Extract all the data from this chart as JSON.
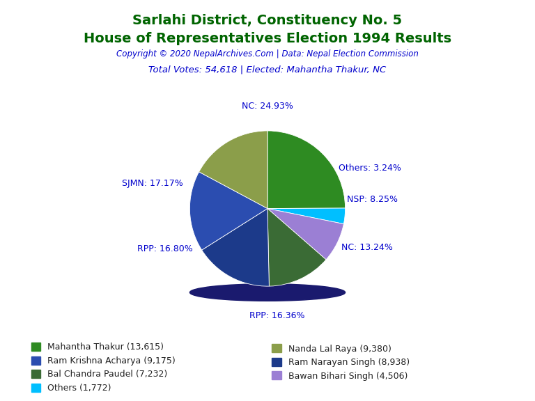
{
  "title_line1": "Sarlahi District, Constituency No. 5",
  "title_line2": "House of Representatives Election 1994 Results",
  "title_color": "#006400",
  "copyright_text": "Copyright © 2020 NepalArchives.Com | Data: Nepal Election Commission",
  "copyright_color": "#0000CC",
  "total_votes_text": "Total Votes: 54,618 | Elected: Mahantha Thakur, NC",
  "total_votes_color": "#0000CC",
  "slices": [
    {
      "label": "NC: 24.93%",
      "value": 13615,
      "color": "#2E8B22",
      "legend": "Mahantha Thakur (13,615)"
    },
    {
      "label": "Others: 3.24%",
      "value": 1772,
      "color": "#00BFFF",
      "legend": "Others (1,772)"
    },
    {
      "label": "NSP: 8.25%",
      "value": 4506,
      "color": "#9B7FD4",
      "legend": "Bawan Bihari Singh (4,506)"
    },
    {
      "label": "NC: 13.24%",
      "value": 7232,
      "color": "#3A6B35",
      "legend": "Bal Chandra Paudel (7,232)"
    },
    {
      "label": "RPP: 16.36%",
      "value": 8938,
      "color": "#1C3A8A",
      "legend": "Ram Narayan Singh (8,938)"
    },
    {
      "label": "RPP: 16.80%",
      "value": 9175,
      "color": "#2B4DB0",
      "legend": "Ram Krishna Acharya (9,175)"
    },
    {
      "label": "SJMN: 17.17%",
      "value": 9380,
      "color": "#8B9E4A",
      "legend": "Nanda Lal Raya (9,380)"
    }
  ],
  "label_color": "#0000CC",
  "label_fontsize": 9,
  "background_color": "#FFFFFF",
  "legend_fontsize": 9,
  "shadow_color": "#1A1A6E",
  "title_fontsize": 14,
  "copyright_fontsize": 8.5,
  "total_votes_fontsize": 9.5
}
